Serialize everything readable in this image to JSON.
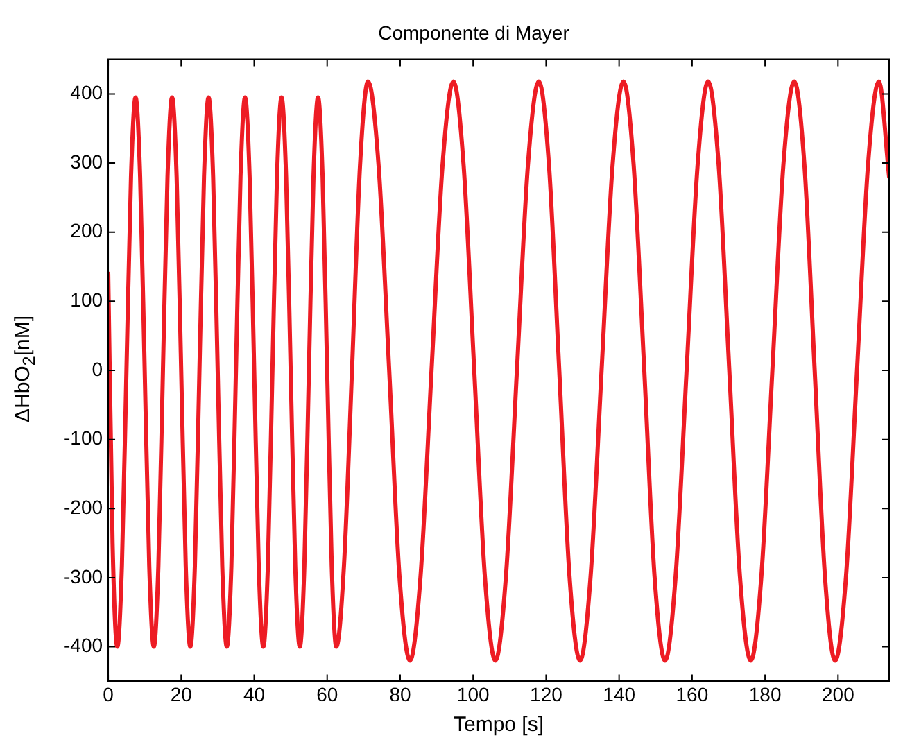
{
  "chart_data": {
    "type": "line",
    "title": "Componente di Mayer",
    "xlabel": "Tempo [s]",
    "ylabel": "ΔHbO$_{2}$[nM]",
    "xlim": [
      0,
      214
    ],
    "xticks": [
      0,
      20,
      40,
      60,
      80,
      100,
      120,
      140,
      160,
      180,
      200
    ],
    "ylim": [
      -450,
      450
    ],
    "yticks": [
      -400,
      -300,
      -200,
      -100,
      0,
      100,
      200,
      300,
      400
    ],
    "grid": false,
    "legend": false,
    "marker": "none",
    "line_style": "solid",
    "series": [
      {
        "color": "#ed1c24",
        "x": [
          0,
          1.2,
          2.5,
          3.75,
          5,
          6.25,
          7.5,
          8.75,
          10,
          11.25,
          12.5,
          13.75,
          15,
          16.25,
          17.5,
          18.75,
          20,
          21.25,
          22.5,
          23.75,
          25,
          26.25,
          27.5,
          28.75,
          30,
          31.25,
          32.5,
          33.75,
          35,
          36.25,
          37.5,
          38.75,
          40,
          41.25,
          42.5,
          43.75,
          45,
          46.25,
          47.5,
          48.75,
          50,
          51.25,
          52.5,
          53.75,
          55,
          56.25,
          57.5,
          58.75,
          60,
          61.25,
          62.5,
          64.6,
          66.8,
          69.0,
          71.2,
          74.1,
          77.0,
          79.8,
          82.7,
          85.6,
          88.6,
          91.6,
          94.6,
          97.4,
          100.3,
          103.2,
          106.1,
          109.0,
          112.0,
          115.0,
          118.0,
          120.8,
          123.6,
          126.4,
          129.3,
          132.2,
          135.2,
          138.2,
          141.2,
          144.0,
          146.9,
          149.7,
          152.6,
          155.5,
          158.5,
          161.5,
          164.4,
          167.3,
          170.2,
          173.1,
          176.1,
          179.0,
          182.0,
          185.0,
          188.0,
          190.8,
          193.6,
          196.4,
          199.2,
          202.2,
          205.2,
          208.2,
          211.2,
          214
        ],
        "values": [
          140,
          -250,
          -400,
          -283,
          0,
          280,
          395,
          280,
          0,
          -283,
          -400,
          -283,
          0,
          280,
          395,
          280,
          0,
          -283,
          -400,
          -283,
          0,
          280,
          395,
          280,
          0,
          -283,
          -400,
          -283,
          0,
          280,
          395,
          280,
          0,
          -283,
          -400,
          -283,
          0,
          280,
          395,
          280,
          0,
          -283,
          -400,
          -283,
          0,
          280,
          395,
          280,
          0,
          -283,
          -400,
          -283,
          0,
          296,
          418,
          296,
          0,
          -297,
          -420,
          -297,
          0,
          296,
          418,
          296,
          0,
          -297,
          -420,
          -297,
          0,
          296,
          418,
          296,
          0,
          -297,
          -420,
          -297,
          0,
          296,
          418,
          296,
          0,
          -297,
          -420,
          -297,
          0,
          296,
          418,
          296,
          0,
          -297,
          -420,
          -297,
          0,
          296,
          418,
          296,
          0,
          -297,
          -420,
          -297,
          0,
          296,
          418,
          280
        ]
      }
    ]
  }
}
